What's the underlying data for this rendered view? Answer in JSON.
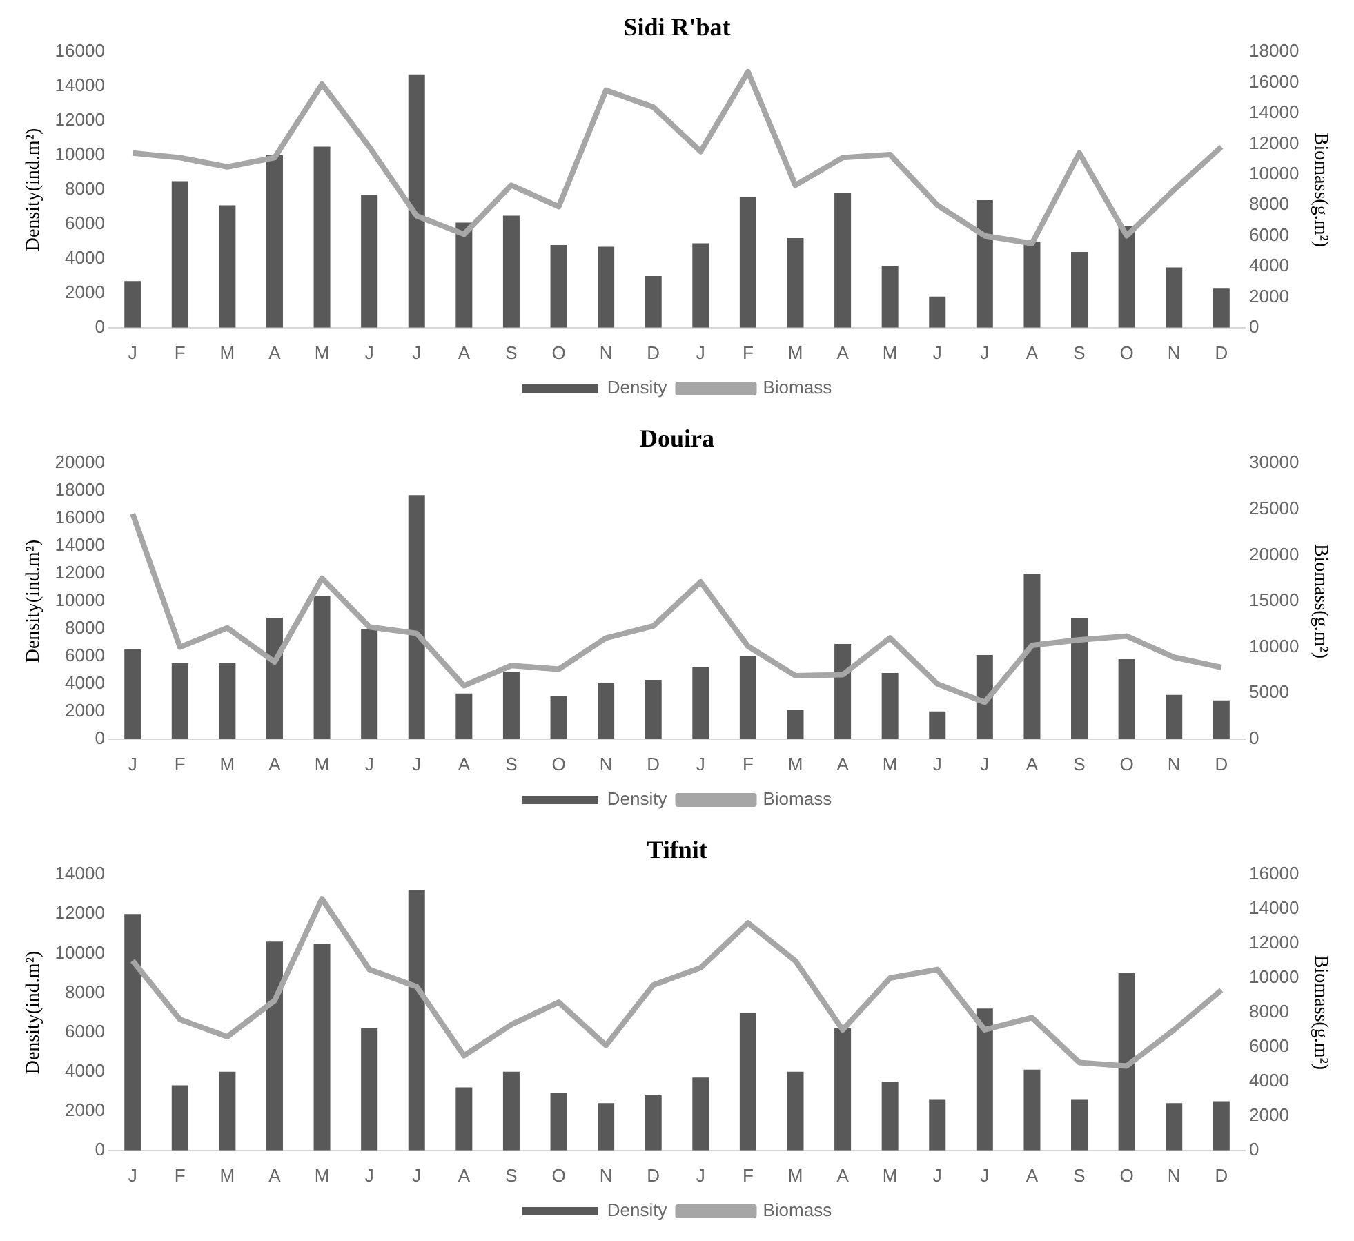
{
  "chart_data": [
    {
      "type": "bar",
      "title": "Sidi R'bat",
      "ylabel": "Density(ind.m²)",
      "y2label": "Biomass(g.m²)",
      "categories": [
        "J",
        "F",
        "M",
        "A",
        "M",
        "J",
        "J",
        "A",
        "S",
        "O",
        "N",
        "D",
        "J",
        "F",
        "M",
        "A",
        "M",
        "J",
        "J",
        "A",
        "S",
        "O",
        "N",
        "D"
      ],
      "ylim": [
        0,
        16000
      ],
      "yticks": [
        0,
        2000,
        4000,
        6000,
        8000,
        10000,
        12000,
        14000,
        16000
      ],
      "y2lim": [
        0,
        18000
      ],
      "y2ticks": [
        0,
        2000,
        4000,
        6000,
        8000,
        10000,
        12000,
        14000,
        16000,
        18000
      ],
      "grid": false,
      "legend": "bottom",
      "series": [
        {
          "name": "Density",
          "color": "#595959",
          "values": [
            2700,
            8500,
            7100,
            10000,
            10500,
            7700,
            14700,
            6100,
            6500,
            4800,
            4700,
            3000,
            4900,
            7600,
            5200,
            7800,
            3600,
            1800,
            7400,
            5000,
            4400,
            5900,
            3500,
            2300
          ]
        },
        {
          "name": "Biomass",
          "type": "line",
          "axis": "y2",
          "color": "#a6a6a6",
          "values": [
            11400,
            11100,
            10500,
            11100,
            15900,
            11800,
            7300,
            6100,
            9300,
            7900,
            15500,
            14400,
            11500,
            16700,
            9300,
            11100,
            11300,
            8000,
            6000,
            5500,
            11400,
            6000,
            9000,
            11800
          ]
        }
      ]
    },
    {
      "type": "bar",
      "title": "Douira",
      "ylabel": "Density(ind.m²)",
      "y2label": "Biomass(g.m²)",
      "categories": [
        "J",
        "F",
        "M",
        "A",
        "M",
        "J",
        "J",
        "A",
        "S",
        "O",
        "N",
        "D",
        "J",
        "F",
        "M",
        "A",
        "M",
        "J",
        "J",
        "A",
        "S",
        "O",
        "N",
        "D"
      ],
      "ylim": [
        0,
        20000
      ],
      "yticks": [
        0,
        2000,
        4000,
        6000,
        8000,
        10000,
        12000,
        14000,
        16000,
        18000,
        20000
      ],
      "y2lim": [
        0,
        30000
      ],
      "y2ticks": [
        0,
        5000,
        10000,
        15000,
        20000,
        25000,
        30000
      ],
      "grid": false,
      "legend": "bottom",
      "series": [
        {
          "name": "Density",
          "color": "#595959",
          "values": [
            6500,
            5500,
            5500,
            8800,
            10400,
            8000,
            17700,
            3300,
            4900,
            3100,
            4100,
            4300,
            5200,
            6000,
            2100,
            6900,
            4800,
            2000,
            6100,
            12000,
            8800,
            5800,
            3200,
            2800
          ]
        },
        {
          "name": "Biomass",
          "type": "line",
          "axis": "y2",
          "color": "#a6a6a6",
          "values": [
            24500,
            10000,
            12100,
            8400,
            17500,
            12200,
            11500,
            5800,
            8000,
            7600,
            11000,
            12300,
            17100,
            10100,
            6900,
            7000,
            11000,
            6000,
            4000,
            10200,
            10800,
            11200,
            8900,
            7800
          ]
        }
      ]
    },
    {
      "type": "bar",
      "title": "Tifnit",
      "ylabel": "Density(ind.m²)",
      "y2label": "Biomass(g.m²)",
      "categories": [
        "J",
        "F",
        "M",
        "A",
        "M",
        "J",
        "J",
        "A",
        "S",
        "O",
        "N",
        "D",
        "J",
        "F",
        "M",
        "A",
        "M",
        "J",
        "J",
        "A",
        "S",
        "O",
        "N",
        "D"
      ],
      "ylim": [
        0,
        14000
      ],
      "yticks": [
        0,
        2000,
        4000,
        6000,
        8000,
        10000,
        12000,
        14000
      ],
      "y2lim": [
        0,
        16000
      ],
      "y2ticks": [
        0,
        2000,
        4000,
        6000,
        8000,
        10000,
        12000,
        14000,
        16000
      ],
      "grid": false,
      "legend": "bottom",
      "series": [
        {
          "name": "Density",
          "color": "#595959",
          "values": [
            12000,
            3300,
            4000,
            10600,
            10500,
            6200,
            13200,
            3200,
            4000,
            2900,
            2400,
            2800,
            3700,
            7000,
            4000,
            6200,
            3500,
            2600,
            7200,
            4100,
            2600,
            9000,
            2400,
            2500
          ]
        },
        {
          "name": "Biomass",
          "type": "line",
          "axis": "y2",
          "color": "#a6a6a6",
          "values": [
            11000,
            7600,
            6600,
            8700,
            14600,
            10500,
            9500,
            5500,
            7300,
            8600,
            6100,
            9600,
            10600,
            13200,
            11000,
            7000,
            10000,
            10500,
            7000,
            7700,
            5100,
            4900,
            7000,
            9300
          ]
        }
      ]
    }
  ]
}
